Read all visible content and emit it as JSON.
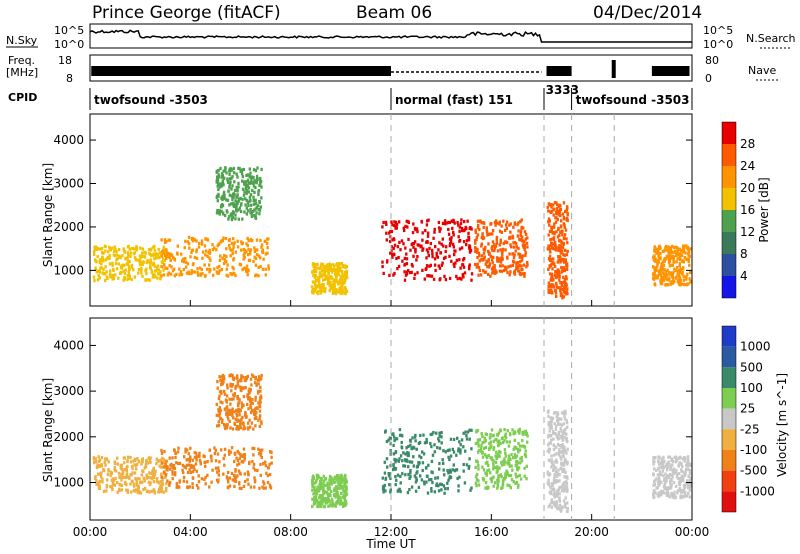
{
  "header": {
    "radar": "Prince George (fitACF)",
    "beam": "Beam 06",
    "date": "04/Dec/2014"
  },
  "panels": {
    "sky": {
      "label": "N.Sky",
      "right_label": "N.Search",
      "ticks": [
        "10^5",
        "10^0"
      ],
      "right_ticks": [
        "10^5",
        "10^0"
      ]
    },
    "freq": {
      "label": "Freq.",
      "unit": "[MHz]",
      "ticks": [
        "18",
        "8"
      ],
      "right_label": "Nave",
      "right_ticks": [
        "80",
        "0"
      ]
    },
    "cpid": {
      "label": "CPID"
    }
  },
  "chart_data": {
    "type": "heatmap",
    "xlabel": "Time UT",
    "xticks": [
      "00:00",
      "04:00",
      "08:00",
      "12:00",
      "16:00",
      "20:00",
      "00:00"
    ],
    "xlim_hours": [
      0,
      24
    ],
    "mode_changes_hours": [
      12.0,
      18.1,
      19.2,
      20.9
    ],
    "cpid_segments": [
      {
        "start": 0,
        "end": 12.0,
        "label": "twofsound -3503"
      },
      {
        "start": 12.0,
        "end": 18.1,
        "label": "normal (fast) 151"
      },
      {
        "start": 18.1,
        "end": 19.2,
        "label": "3333"
      },
      {
        "start": 19.2,
        "end": 24,
        "label": "twofsound -3503"
      }
    ],
    "panels": [
      {
        "name": "power",
        "ylabel": "Slant Range [km]",
        "ylim": [
          180,
          4600
        ],
        "yticks": [
          1000,
          2000,
          3000,
          4000
        ],
        "colorbar_label": "Power [dB]",
        "colorbar_unit": "dB",
        "colorbar_ticks": [
          "28",
          "24",
          "20",
          "16",
          "12",
          "8",
          "4"
        ],
        "colorbar_colors": [
          "#e60000",
          "#ff5a00",
          "#ff9400",
          "#f2c200",
          "#4ea24e",
          "#3a7a5a",
          "#2c4fa0",
          "#1414e6"
        ]
      },
      {
        "name": "velocity",
        "ylabel": "Slant Range [km]",
        "ylim": [
          180,
          4600
        ],
        "yticks": [
          1000,
          2000,
          3000,
          4000
        ],
        "colorbar_label": "Velocity [m s^-1]",
        "colorbar_unit": "m s^-1",
        "colorbar_ticks": [
          "1000",
          "500",
          "100",
          "25",
          "-25",
          "-100",
          "-500",
          "-1000"
        ],
        "colorbar_colors": [
          "#1e3cc8",
          "#2a5aa0",
          "#3a8a6a",
          "#7ccd50",
          "#c8c8c8",
          "#f0b040",
          "#f08018",
          "#f04010",
          "#e01010"
        ]
      }
    ],
    "echo_regions": [
      {
        "t0": 0.1,
        "t1": 3.0,
        "r0": 800,
        "r1": 1600,
        "power_db": 16,
        "velocity": -50
      },
      {
        "t0": 2.8,
        "t1": 7.2,
        "r0": 900,
        "r1": 1800,
        "power_db": 20,
        "velocity": -150
      },
      {
        "t0": 5.0,
        "t1": 6.8,
        "r0": 2200,
        "r1": 3400,
        "power_db": 10,
        "velocity": -100
      },
      {
        "t0": 8.8,
        "t1": 10.2,
        "r0": 500,
        "r1": 1200,
        "power_db": 14,
        "velocity": 80
      },
      {
        "t0": 11.6,
        "t1": 15.2,
        "r0": 800,
        "r1": 2200,
        "power_db": 26,
        "velocity": 300
      },
      {
        "t0": 15.3,
        "t1": 17.4,
        "r0": 900,
        "r1": 2200,
        "power_db": 22,
        "velocity": 40
      },
      {
        "t0": 18.2,
        "t1": 19.0,
        "r0": 400,
        "r1": 2600,
        "power_db": 24,
        "velocity": -20
      },
      {
        "t0": 22.4,
        "t1": 23.9,
        "r0": 700,
        "r1": 1600,
        "power_db": 18,
        "velocity": -20
      }
    ]
  }
}
